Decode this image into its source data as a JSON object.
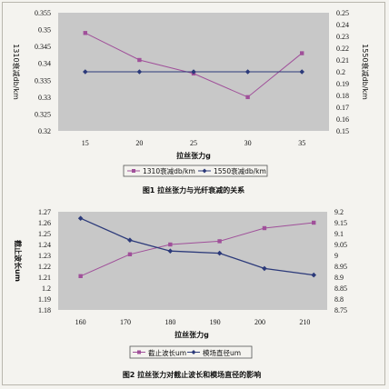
{
  "chart_data": [
    {
      "type": "line",
      "title": "",
      "caption": "图1 拉丝张力与光纤衰减的关系",
      "xlabel": "拉丝张力g",
      "ylabel": "1310衰减db/km",
      "y2label": "1550衰减db/km",
      "x_ticks": [
        "15",
        "20",
        "25",
        "30",
        "35"
      ],
      "x": [
        15,
        20,
        25,
        30,
        35
      ],
      "ylim": [
        0.32,
        0.355
      ],
      "y_ticks": [
        "0.32",
        "0.325",
        "0.33",
        "0.335",
        "0.34",
        "0.345",
        "0.35",
        "0.355"
      ],
      "y2lim": [
        0.15,
        0.25
      ],
      "y2_ticks": [
        "0.15",
        "0.16",
        "0.17",
        "0.18",
        "0.19",
        "0.2",
        "0.21",
        "0.22",
        "0.23",
        "0.24",
        "0.25"
      ],
      "legend_position": "bottom",
      "grid": false,
      "background": "#c8c8c8",
      "series": [
        {
          "name": "1310衰减db/km",
          "axis": "left",
          "marker": "square",
          "color": "#a0509a",
          "values": [
            0.349,
            0.341,
            0.337,
            0.33,
            0.343
          ]
        },
        {
          "name": "1550衰减db/km",
          "axis": "right",
          "marker": "diamond",
          "color": "#2c3a7a",
          "values": [
            0.2,
            0.2,
            0.2,
            0.2,
            0.2
          ]
        }
      ]
    },
    {
      "type": "line",
      "title": "",
      "caption": "图2 拉丝张力对截止波长和模场直径的影响",
      "xlabel": "拉丝张力g",
      "ylabel": "截止波长um",
      "x_ticks": [
        "160",
        "170",
        "180",
        "190",
        "200",
        "210"
      ],
      "xlim": [
        155,
        215
      ],
      "ylim": [
        1.18,
        1.27
      ],
      "y_ticks": [
        "1.18",
        "1.19",
        "1.2",
        "1.21",
        "1.22",
        "1.23",
        "1.24",
        "1.25",
        "1.26",
        "1.27"
      ],
      "y2lim": [
        8.75,
        9.2
      ],
      "y2_ticks": [
        "8.75",
        "8.8",
        "8.85",
        "8.9",
        "8.95",
        "9",
        "9.05",
        "9.1",
        "9.15",
        "9.2"
      ],
      "legend_position": "bottom",
      "grid": false,
      "background": "#c8c8c8",
      "series": [
        {
          "name": "截止波长um",
          "axis": "left",
          "marker": "square",
          "color": "#a0509a",
          "x": [
            160,
            171,
            180,
            191,
            201,
            212
          ],
          "values": [
            1.211,
            1.231,
            1.24,
            1.243,
            1.255,
            1.26
          ]
        },
        {
          "name": "模场直径um",
          "axis": "right",
          "marker": "diamond",
          "color": "#2c3a7a",
          "x": [
            160,
            171,
            180,
            191,
            201,
            212
          ],
          "values": [
            9.17,
            9.07,
            9.02,
            9.01,
            8.94,
            8.91
          ]
        }
      ]
    }
  ]
}
